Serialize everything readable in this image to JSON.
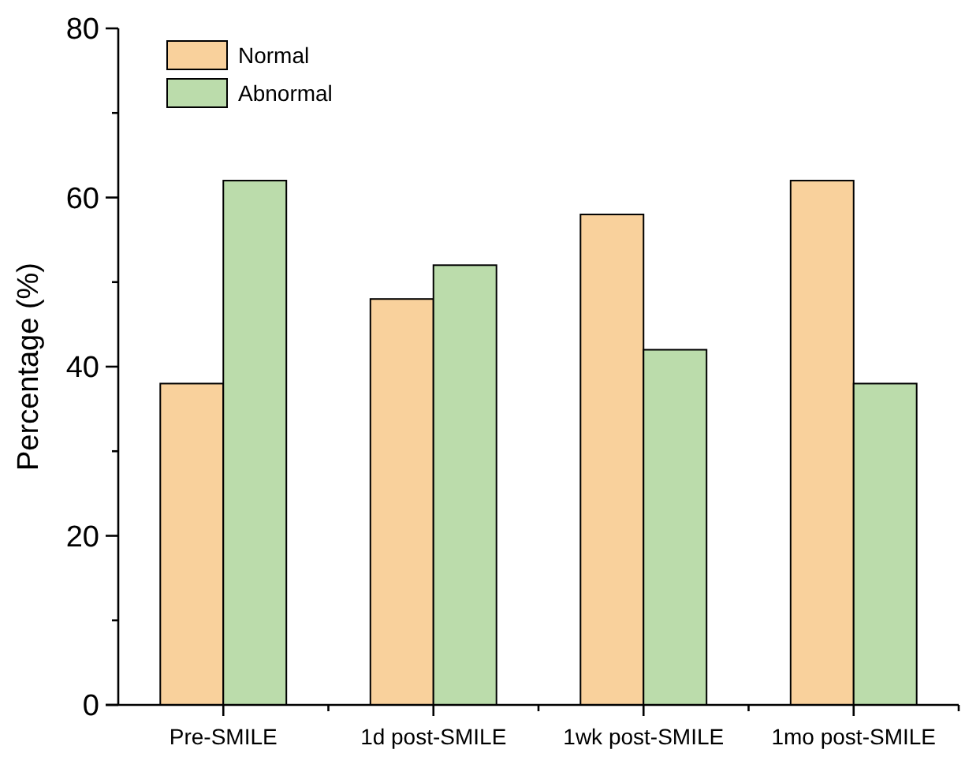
{
  "chart_data": {
    "type": "bar",
    "ylabel": "Percentage (%)",
    "categories": [
      "Pre-SMILE",
      "1d post-SMILE",
      "1wk post-SMILE",
      "1mo post-SMILE"
    ],
    "series": [
      {
        "name": "Normal",
        "color": "#f9d19c",
        "values": [
          38,
          48,
          58,
          62
        ]
      },
      {
        "name": "Abnormal",
        "color": "#bbdcab",
        "values": [
          62,
          52,
          42,
          38
        ]
      }
    ],
    "ylim": [
      0,
      80
    ],
    "yticks": [
      0,
      {
        "value": 10,
        "label": null
      },
      20,
      {
        "value": 30,
        "label": null
      },
      40,
      {
        "value": 50,
        "label": null
      },
      60,
      {
        "value": 70,
        "label": null
      },
      80
    ],
    "grid": false,
    "legend": "top left"
  }
}
